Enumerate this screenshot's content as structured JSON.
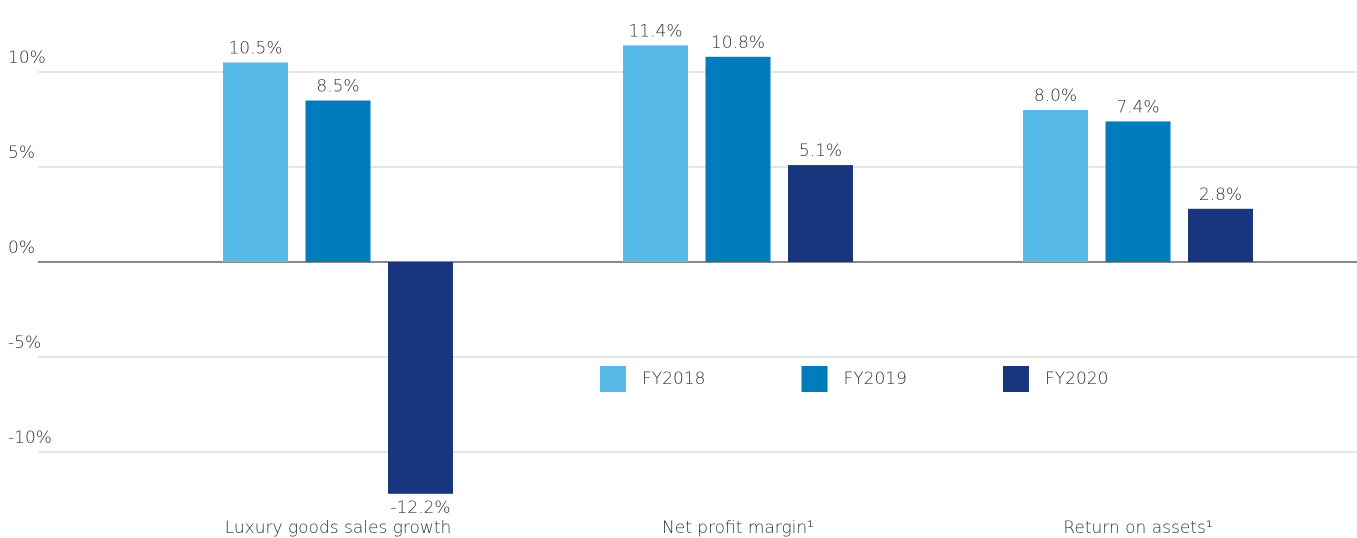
{
  "chart_data": {
    "type": "bar",
    "categories": [
      "Luxury goods sales growth",
      "Net profit margin¹",
      "Return on assets¹"
    ],
    "series": [
      {
        "name": "FY2018",
        "color": "#56b9e8",
        "values": [
          10.5,
          11.4,
          8.0
        ],
        "value_labels": [
          "10.5%",
          "11.4%",
          "8.0%"
        ]
      },
      {
        "name": "FY2019",
        "color": "#007cba",
        "values": [
          8.5,
          10.8,
          7.4
        ],
        "value_labels": [
          "8.5%",
          "10.8%",
          "7.4%"
        ]
      },
      {
        "name": "FY2020",
        "color": "#17367d",
        "values": [
          -12.2,
          5.1,
          2.8
        ],
        "value_labels": [
          "-12.2%",
          "5.1%",
          "2.8%"
        ]
      }
    ],
    "ylim": [
      -12.5,
      13.5
    ],
    "yticks": [
      {
        "value": -10,
        "label": "-10%"
      },
      {
        "value": -5,
        "label": "-5%"
      },
      {
        "value": 0,
        "label": "0%"
      },
      {
        "value": 5,
        "label": "5%"
      },
      {
        "value": 10,
        "label": "10%"
      }
    ],
    "grid": true,
    "legend": "center"
  }
}
